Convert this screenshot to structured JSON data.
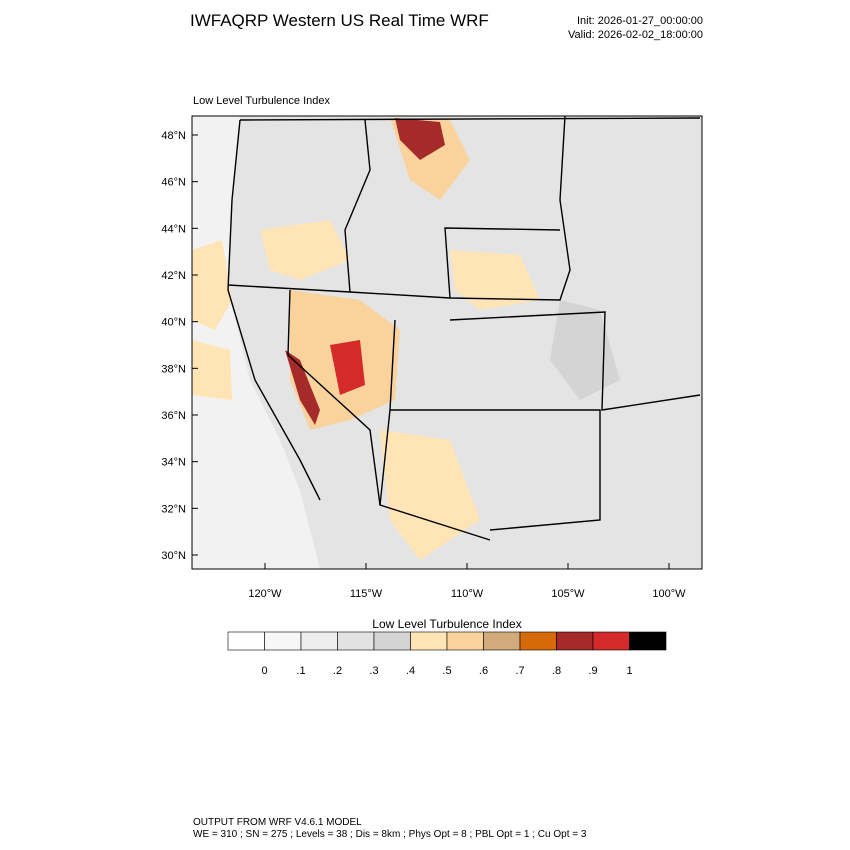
{
  "header": {
    "title": "IWFAQRP Western US Real Time WRF",
    "init": "Init: 2026-01-27_00:00:00",
    "valid": "Valid: 2026-02-02_18:00:00"
  },
  "map": {
    "title": "Low Level Turbulence Index",
    "lat_ticks": [
      {
        "value": 48,
        "label": "48°N"
      },
      {
        "value": 46,
        "label": "46°N"
      },
      {
        "value": 44,
        "label": "44°N"
      },
      {
        "value": 42,
        "label": "42°N"
      },
      {
        "value": 40,
        "label": "40°N"
      },
      {
        "value": 38,
        "label": "38°N"
      },
      {
        "value": 36,
        "label": "36°N"
      },
      {
        "value": 34,
        "label": "34°N"
      },
      {
        "value": 32,
        "label": "32°N"
      },
      {
        "value": 30,
        "label": "30°N"
      }
    ],
    "lon_ticks": [
      {
        "value": -120,
        "label": "120°W"
      },
      {
        "value": -115,
        "label": "115°W"
      },
      {
        "value": -110,
        "label": "110°W"
      },
      {
        "value": -105,
        "label": "105°W"
      },
      {
        "value": -100,
        "label": "100°W"
      }
    ]
  },
  "colorbar": {
    "title": "Low Level Turbulence Index",
    "colors": [
      "#ffffff",
      "#f7f7f7",
      "#eeeeee",
      "#e2e2e2",
      "#d4d4d4",
      "#ffe4b5",
      "#f9d29c",
      "#d2aa7c",
      "#d66a0a",
      "#a52a2a",
      "#d42a2a",
      "#000000"
    ],
    "levels": [
      {
        "value": 0,
        "label": "0"
      },
      {
        "value": 0.1,
        "label": ".1"
      },
      {
        "value": 0.2,
        "label": ".2"
      },
      {
        "value": 0.3,
        "label": ".3"
      },
      {
        "value": 0.4,
        "label": ".4"
      },
      {
        "value": 0.5,
        "label": ".5"
      },
      {
        "value": 0.6,
        "label": ".6"
      },
      {
        "value": 0.7,
        "label": ".7"
      },
      {
        "value": 0.8,
        "label": ".8"
      },
      {
        "value": 0.9,
        "label": ".9"
      },
      {
        "value": 1,
        "label": "1"
      }
    ]
  },
  "footer": {
    "line1": "OUTPUT FROM WRF V4.6.1 MODEL",
    "line2": "WE = 310 ; SN = 275 ; Levels = 38 ; Dis = 8km ; Phys Opt = 8 ; PBL Opt = 1 ; Cu Opt = 3"
  }
}
